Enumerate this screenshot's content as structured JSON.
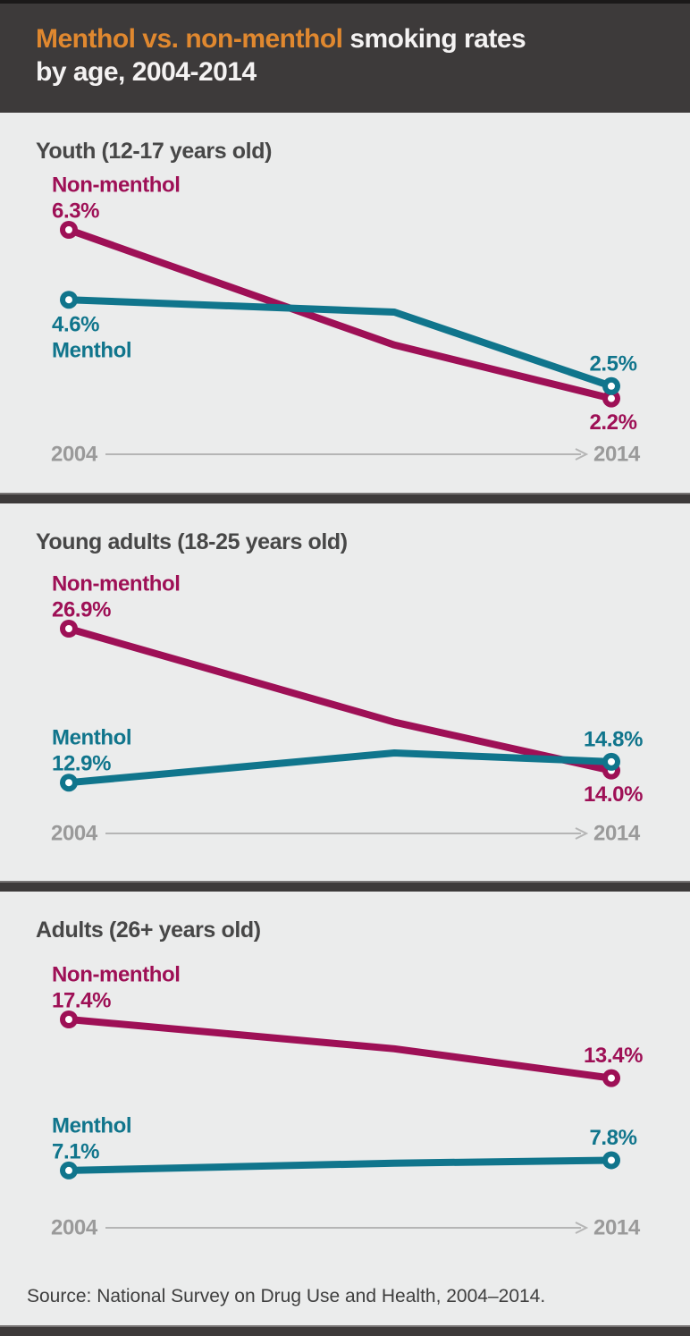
{
  "header": {
    "title_highlight": "Menthol vs. non-menthol",
    "title_rest": " smoking rates",
    "title_line2": "by age, 2004-2014"
  },
  "colors": {
    "header_bg": "#3d3a3a",
    "panel_bg": "#ebecec",
    "accent_orange": "#e0882f",
    "title_gray": "#474747",
    "menthol_teal": "#10758c",
    "non_menthol_magenta": "#9e1056",
    "axis_text": "#9a9a9a",
    "axis_line": "#b5b5b5"
  },
  "source": "Source: National Survey on Drug Use and Health, 2004–2014.",
  "chart_data": [
    {
      "type": "line",
      "title": "Youth (12-17 years old)",
      "x": [
        2004,
        2010,
        2014
      ],
      "xlabel_start": "2004",
      "xlabel_end": "2014",
      "legend_position": "inline-labels",
      "grid": false,
      "series": [
        {
          "name": "Non-menthol",
          "color": "#9e1056",
          "values": [
            6.3,
            3.5,
            2.2
          ],
          "labels": {
            "start": "6.3%",
            "end": "2.2%"
          }
        },
        {
          "name": "Menthol",
          "color": "#10758c",
          "values": [
            4.6,
            4.3,
            2.5
          ],
          "labels": {
            "start": "4.6%",
            "end": "2.5%"
          }
        }
      ]
    },
    {
      "type": "line",
      "title": "Young adults (18-25 years old)",
      "x": [
        2004,
        2010,
        2014
      ],
      "xlabel_start": "2004",
      "xlabel_end": "2014",
      "legend_position": "inline-labels",
      "grid": false,
      "series": [
        {
          "name": "Non-menthol",
          "color": "#9e1056",
          "values": [
            26.9,
            18.4,
            14.0
          ],
          "labels": {
            "start": "26.9%",
            "end": "14.0%"
          }
        },
        {
          "name": "Menthol",
          "color": "#10758c",
          "values": [
            12.9,
            15.6,
            14.8
          ],
          "labels": {
            "start": "12.9%",
            "end": "14.8%"
          }
        }
      ]
    },
    {
      "type": "line",
      "title": "Adults (26+ years old)",
      "x": [
        2004,
        2010,
        2014
      ],
      "xlabel_start": "2004",
      "xlabel_end": "2014",
      "legend_position": "inline-labels",
      "grid": false,
      "series": [
        {
          "name": "Non-menthol",
          "color": "#9e1056",
          "values": [
            17.4,
            15.4,
            13.4
          ],
          "labels": {
            "start": "17.4%",
            "end": "13.4%"
          }
        },
        {
          "name": "Menthol",
          "color": "#10758c",
          "values": [
            7.1,
            7.6,
            7.8
          ],
          "labels": {
            "start": "7.1%",
            "end": "7.8%"
          }
        }
      ]
    }
  ]
}
